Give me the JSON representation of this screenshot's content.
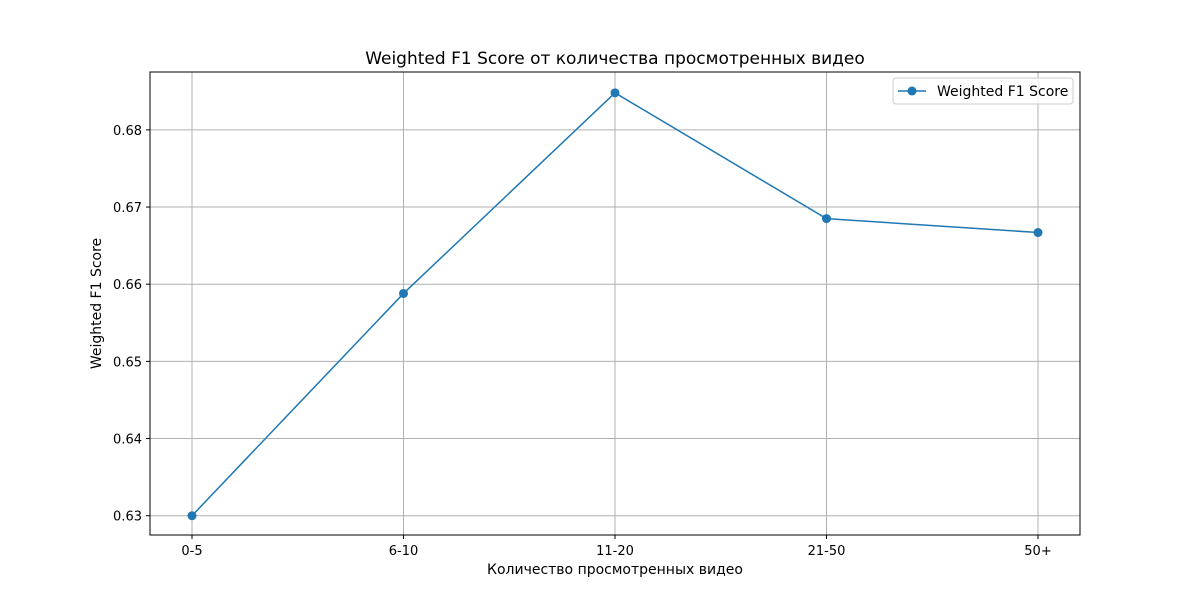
{
  "chart_data": {
    "type": "line",
    "title": "Weighted F1 Score от количества просмотренных видео",
    "xlabel": "Количество просмотренных видео",
    "ylabel": "Weighted F1 Score",
    "categories": [
      "0-5",
      "6-10",
      "11-20",
      "21-50",
      "50+"
    ],
    "series": [
      {
        "name": "Weighted F1 Score",
        "values": [
          0.63,
          0.6588,
          0.6848,
          0.6685,
          0.6667
        ],
        "color": "#1f77b4",
        "marker": "circle"
      }
    ],
    "ylim": [
      0.6275,
      0.6875
    ],
    "yticks": [
      0.63,
      0.64,
      0.65,
      0.66,
      0.67,
      0.68
    ],
    "ytick_labels": [
      "0.63",
      "0.64",
      "0.65",
      "0.66",
      "0.67",
      "0.68"
    ],
    "grid": true,
    "legend_position": "top-right"
  }
}
